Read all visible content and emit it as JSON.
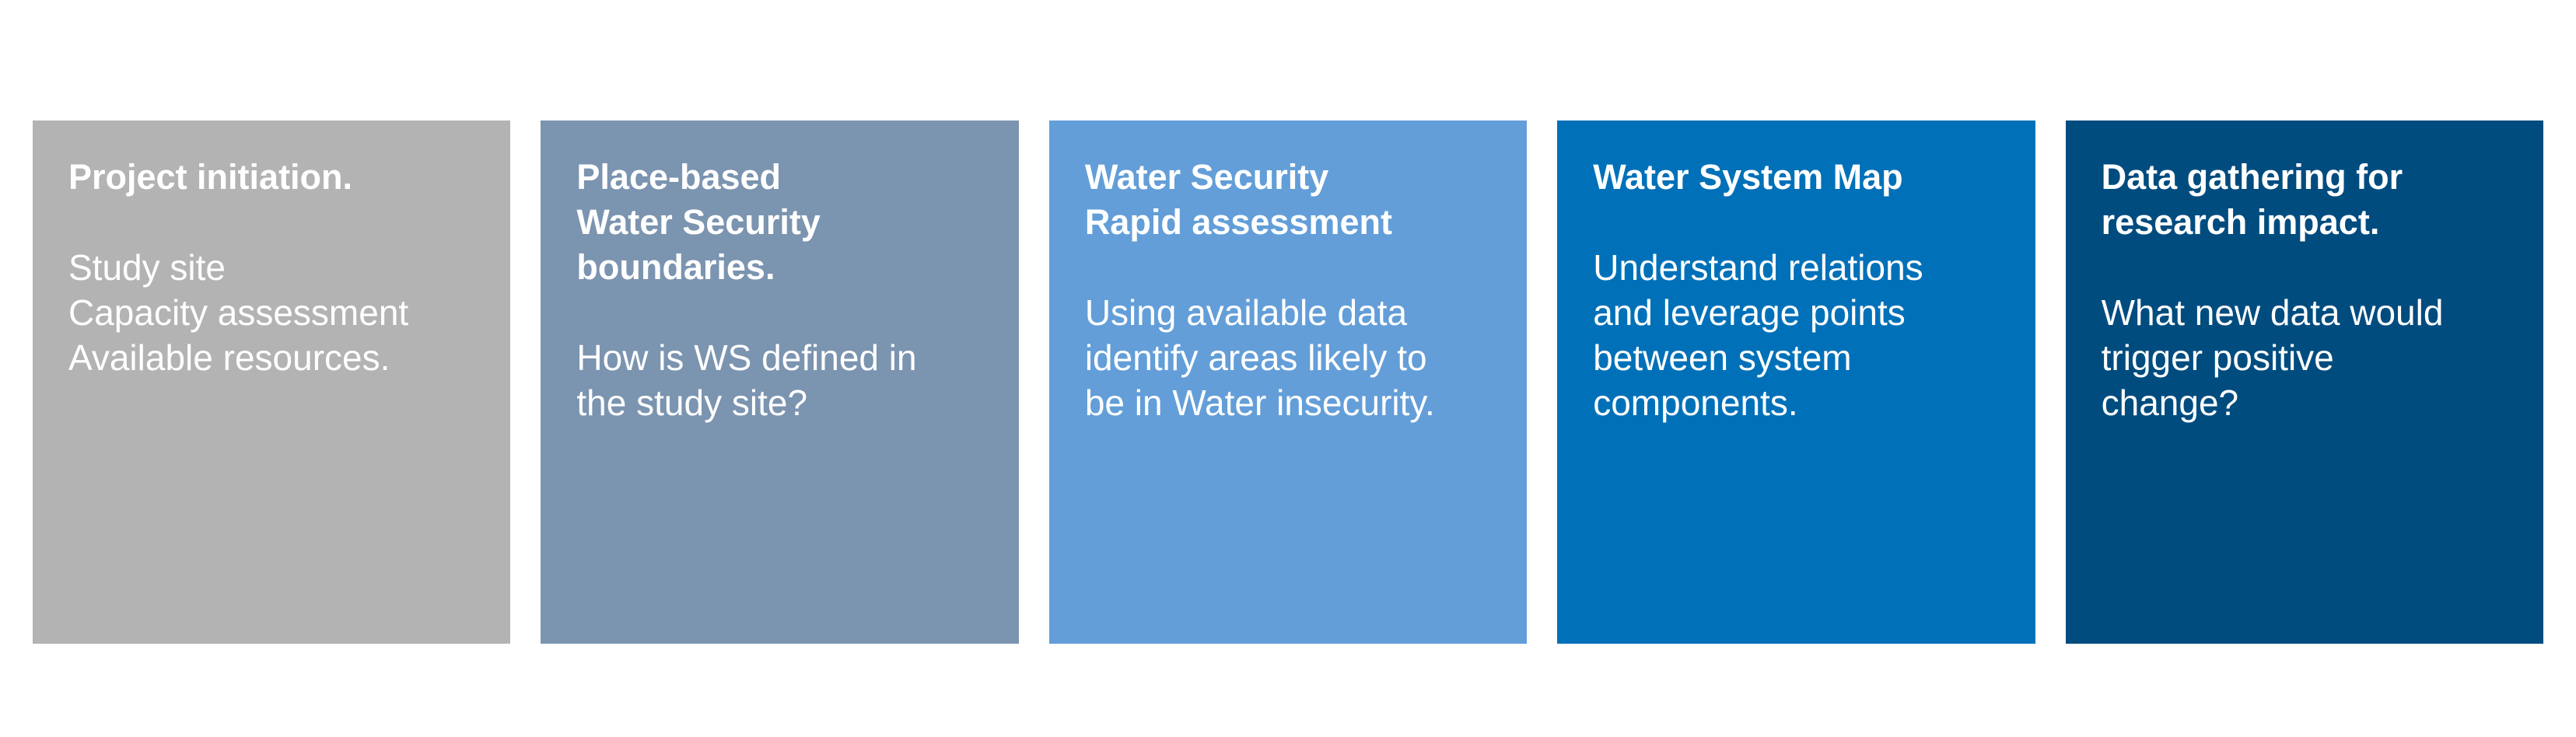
{
  "stages": [
    {
      "title": "Project initiation.",
      "body": "Study site\nCapacity assessment\nAvailable resources.",
      "color": "#b3b3b3"
    },
    {
      "title": "Place-based\nWater Security\nboundaries.",
      "body": "How is WS defined in\nthe study site?",
      "color": "#7b94b0"
    },
    {
      "title": "Water Security\nRapid assessment",
      "body": "Using available data\nidentify areas likely to\nbe in Water insecurity.",
      "color": "#639ed8"
    },
    {
      "title": "Water System Map",
      "body": "Understand relations\nand leverage points\nbetween system\ncomponents.",
      "color": "#0071b8"
    },
    {
      "title": "Data gathering for\nresearch impact.",
      "body": "What new data would\ntrigger positive\nchange?",
      "color": "#004c7f"
    }
  ]
}
